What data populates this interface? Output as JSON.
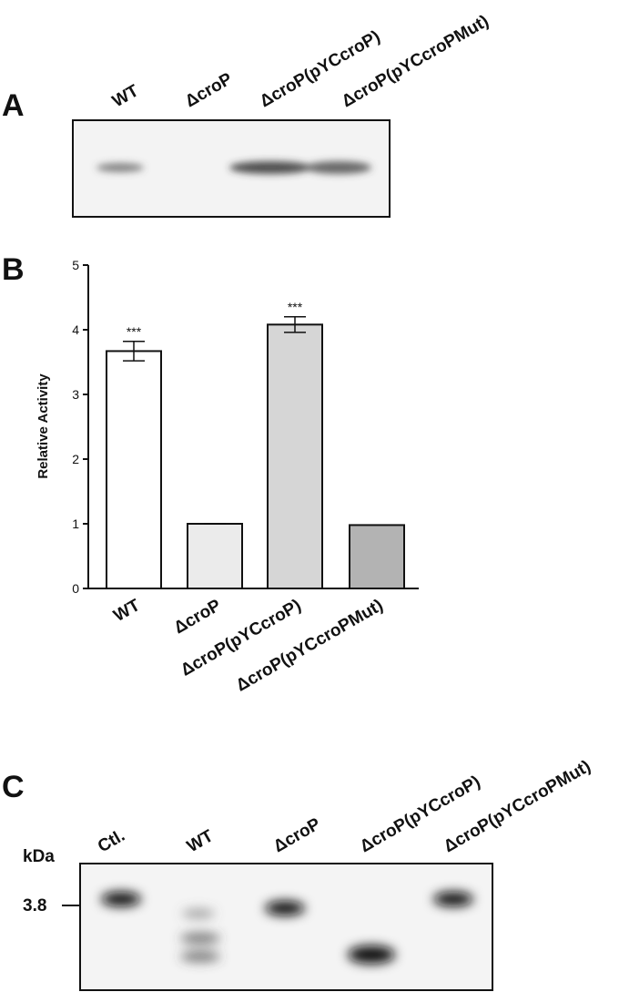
{
  "panel_a": {
    "label": "A",
    "lanes": [
      "WT",
      "ΔcroP",
      "ΔcroP(pYCcroP)",
      "ΔcroP(pYCcroPMut)"
    ]
  },
  "chart_data": {
    "type": "bar",
    "label": "B",
    "ylabel": "Relative Activity",
    "categories": [
      "WT",
      "ΔcroP",
      "ΔcroP(pYCcroP)",
      "ΔcroP(pYCcroPMut)"
    ],
    "values": [
      3.67,
      1.0,
      4.08,
      0.98
    ],
    "errors": [
      0.15,
      0.0,
      0.12,
      0.0
    ],
    "colors": [
      "#ffffff",
      "#ebebeb",
      "#d6d6d6",
      "#b3b3b3"
    ],
    "annotations": [
      "***",
      null,
      "***",
      null
    ],
    "ylim": [
      0,
      5
    ],
    "yticks": [
      0,
      1,
      2,
      3,
      4,
      5
    ]
  },
  "panel_c": {
    "label": "C",
    "unit": "kDa",
    "marker": "3.8",
    "lanes": [
      "Ctl.",
      "WT",
      "ΔcroP",
      "ΔcroP(pYCcroP)",
      "ΔcroP(pYCcroPMut)"
    ]
  }
}
